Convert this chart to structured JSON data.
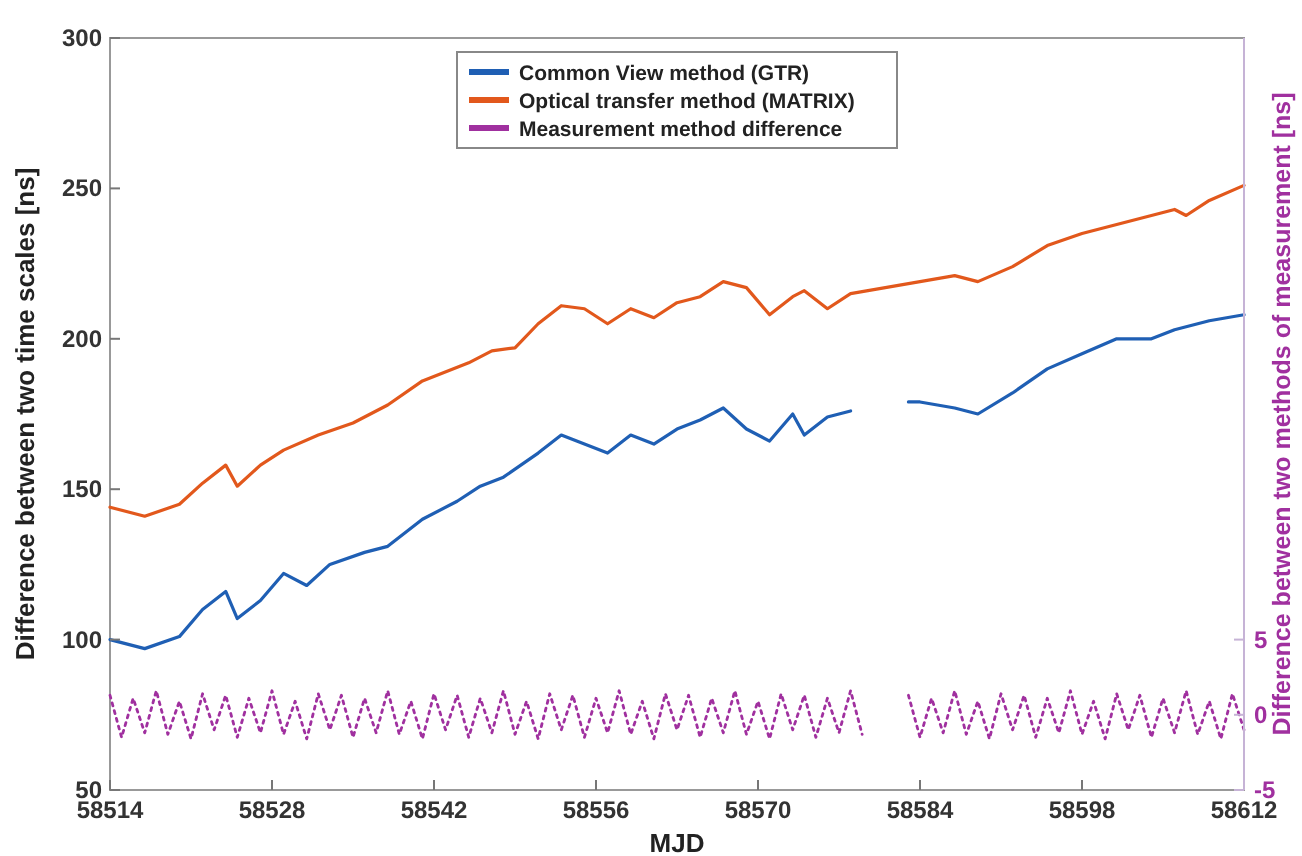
{
  "chart_data": {
    "type": "line",
    "xlabel": "MJD",
    "ylabel": "Difference between two time scales [ns]",
    "y2label": "Difference between two methods of measurement [ns]",
    "xlim": [
      58514,
      58612
    ],
    "xticks": [
      58514,
      58528,
      58542,
      58556,
      58570,
      58584,
      58598,
      58612
    ],
    "ylim": [
      50,
      300
    ],
    "yticks": [
      50,
      100,
      150,
      200,
      250,
      300
    ],
    "y2lim": [
      -5,
      45
    ],
    "y2ticks": [
      -5,
      0,
      5
    ],
    "legend": "top",
    "grid": false,
    "marker": "none",
    "series": [
      {
        "name": "Common View method (GTR)",
        "color": "#1f5fb4",
        "x": [
          58514,
          58517,
          58520,
          58522,
          58524,
          58525,
          58527,
          58529,
          58531,
          58533,
          58536,
          58538,
          58541,
          58544,
          58546,
          58548,
          58551,
          58553,
          58555,
          58557,
          58559,
          58561,
          58563,
          58565,
          58567,
          58569,
          58571,
          58573,
          58574,
          58576,
          58578,
          58580,
          58583,
          58584,
          58587,
          58589,
          58592,
          58595,
          58598,
          58601,
          58604,
          58606,
          58609,
          58612
        ],
        "values": [
          100,
          97,
          101,
          110,
          116,
          107,
          113,
          122,
          118,
          125,
          129,
          131,
          140,
          146,
          151,
          154,
          162,
          168,
          165,
          162,
          168,
          165,
          170,
          173,
          177,
          170,
          166,
          175,
          168,
          174,
          176,
          null,
          179,
          179,
          177,
          175,
          182,
          190,
          195,
          200,
          200,
          203,
          206,
          208
        ]
      },
      {
        "name": "Optical transfer method (MATRIX)",
        "color": "#e2581c",
        "x": [
          58514,
          58517,
          58520,
          58522,
          58524,
          58525,
          58527,
          58529,
          58532,
          58535,
          58538,
          58541,
          58545,
          58547,
          58549,
          58551,
          58553,
          58555,
          58557,
          58559,
          58561,
          58563,
          58565,
          58567,
          58569,
          58571,
          58573,
          58574,
          58576,
          58578,
          58581,
          58584,
          58587,
          58589,
          58592,
          58595,
          58598,
          58601,
          58604,
          58606,
          58607,
          58609,
          58612
        ],
        "values": [
          144,
          141,
          145,
          152,
          158,
          151,
          158,
          163,
          168,
          172,
          178,
          186,
          192,
          196,
          197,
          205,
          211,
          210,
          205,
          210,
          207,
          212,
          214,
          219,
          217,
          208,
          214,
          216,
          210,
          215,
          217,
          219,
          221,
          219,
          224,
          231,
          235,
          238,
          241,
          243,
          241,
          246,
          251
        ]
      },
      {
        "name": "Measurement method difference",
        "color": "#a0309f",
        "axis": "y2",
        "line_style": "dotted",
        "x": [
          58514,
          58515,
          58516,
          58517,
          58518,
          58519,
          58520,
          58521,
          58522,
          58523,
          58524,
          58525,
          58526,
          58527,
          58528,
          58529,
          58530,
          58531,
          58532,
          58533,
          58534,
          58535,
          58536,
          58537,
          58538,
          58539,
          58540,
          58541,
          58542,
          58543,
          58544,
          58545,
          58546,
          58547,
          58548,
          58549,
          58550,
          58551,
          58552,
          58553,
          58554,
          58555,
          58556,
          58557,
          58558,
          58559,
          58560,
          58561,
          58562,
          58563,
          58564,
          58565,
          58566,
          58567,
          58568,
          58569,
          58570,
          58571,
          58572,
          58573,
          58574,
          58575,
          58576,
          58577,
          58578,
          58579,
          58580,
          58581,
          58582,
          58583,
          58584,
          58585,
          58586,
          58587,
          58588,
          58589,
          58590,
          58591,
          58592,
          58593,
          58594,
          58595,
          58596,
          58597,
          58598,
          58599,
          58600,
          58601,
          58602,
          58603,
          58604,
          58605,
          58606,
          58607,
          58608,
          58609,
          58610,
          58611,
          58612
        ],
        "values": [
          1.3,
          -1.5,
          1.1,
          -1.2,
          1.6,
          -1.3,
          0.9,
          -1.6,
          1.4,
          -1.0,
          1.3,
          -1.5,
          1.1,
          -1.2,
          1.6,
          -1.3,
          0.9,
          -1.6,
          1.4,
          -1.0,
          1.3,
          -1.5,
          1.1,
          -1.2,
          1.6,
          -1.3,
          0.9,
          -1.6,
          1.4,
          -1.0,
          1.3,
          -1.5,
          1.1,
          -1.2,
          1.6,
          -1.3,
          0.9,
          -1.6,
          1.4,
          -1.0,
          1.3,
          -1.5,
          1.1,
          -1.2,
          1.6,
          -1.3,
          0.9,
          -1.6,
          1.4,
          -1.0,
          1.3,
          -1.5,
          1.1,
          -1.2,
          1.6,
          -1.3,
          0.9,
          -1.6,
          1.4,
          -1.0,
          1.3,
          -1.5,
          1.1,
          -1.2,
          1.6,
          -1.3,
          null,
          null,
          null,
          1.3,
          -1.5,
          1.1,
          -1.2,
          1.6,
          -1.3,
          0.9,
          -1.6,
          1.4,
          -1.0,
          1.3,
          -1.5,
          1.1,
          -1.2,
          1.6,
          -1.3,
          0.9,
          -1.6,
          1.4,
          -1.0,
          1.3,
          -1.5,
          1.1,
          -1.2,
          1.6,
          -1.3,
          0.9,
          -1.6,
          1.4,
          -1.0
        ]
      }
    ]
  }
}
